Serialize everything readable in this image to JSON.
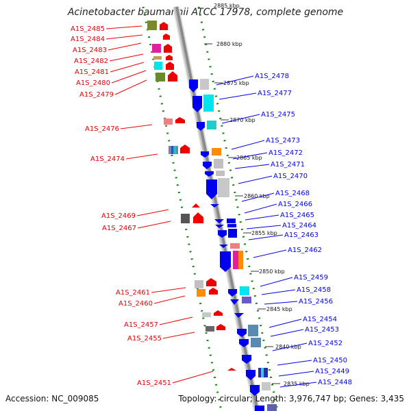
{
  "title": "Acinetobacter baumannii ATCC 17978, complete genome",
  "footer": {
    "accession": "Accession: NC_009085",
    "summary": "Topology: circular; Length: 3,976,747 bp; Genes: 3,435"
  },
  "kbp_labels": [
    "2885 kbp",
    "2880 kbp",
    "2875 kbp",
    "2870 kbp",
    "2865 kbp",
    "2860 kbp",
    "2855 kbp",
    "2850 kbp",
    "2845 kbp",
    "2840 kbp",
    "2835 kbp"
  ],
  "left_genes": [
    "A1S_2485",
    "A1S_2484",
    "A1S_2483",
    "A1S_2482",
    "A1S_2481",
    "A1S_2480",
    "A1S_2479",
    "A1S_2476",
    "A1S_2474",
    "A1S_2469",
    "A1S_2467",
    "A1S_2461",
    "A1S_2460",
    "A1S_2457",
    "A1S_2455",
    "A1S_2451"
  ],
  "right_genes": [
    "A1S_2478",
    "A1S_2477",
    "A1S_2475",
    "A1S_2473",
    "A1S_2472",
    "A1S_2471",
    "A1S_2470",
    "A1S_2468",
    "A1S_2466",
    "A1S_2465",
    "A1S_2464",
    "A1S_2463",
    "A1S_2462",
    "A1S_2459",
    "A1S_2458",
    "A1S_2456",
    "A1S_2454",
    "A1S_2453",
    "A1S_2452",
    "A1S_2450",
    "A1S_2449",
    "A1S_2448"
  ],
  "colors": {
    "forward_strand": "#ee0000",
    "reverse_strand": "#0000ee",
    "backbone": "#999999",
    "gc_dots": "#118811"
  }
}
